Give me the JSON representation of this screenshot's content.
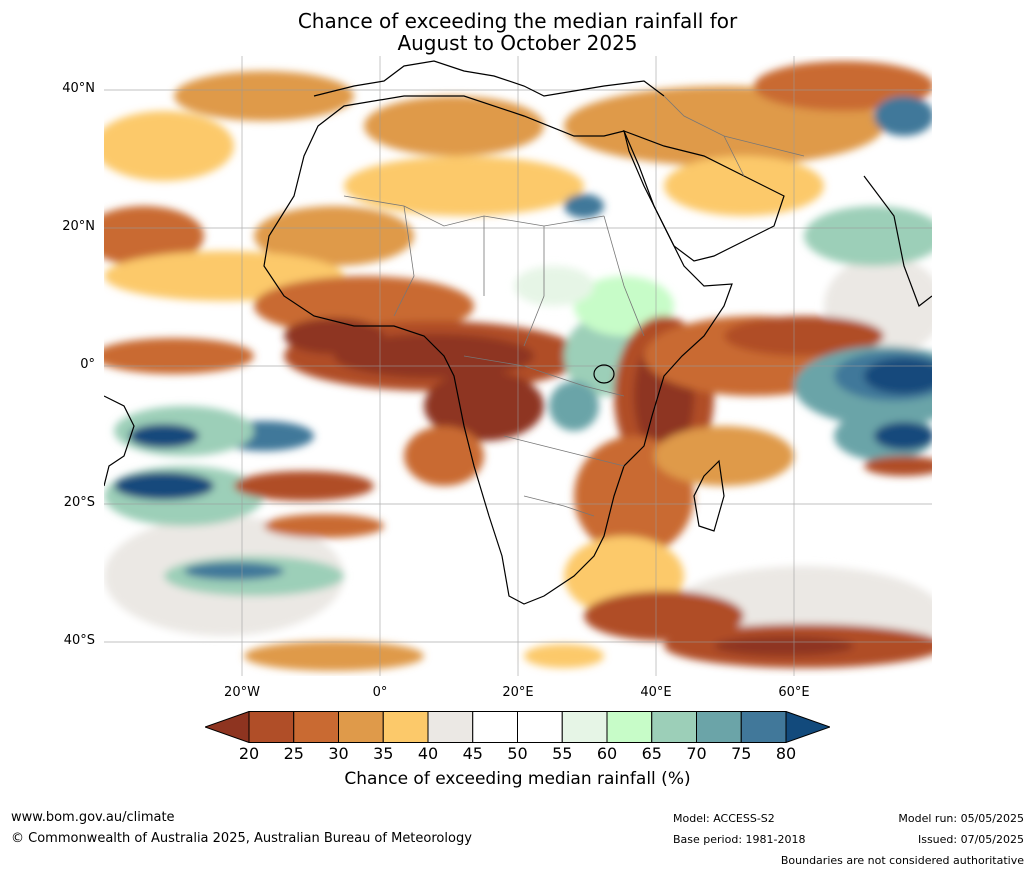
{
  "title_line1": "Chance of exceeding the median rainfall for",
  "title_line2": "August to October 2025",
  "lat_labels": [
    "40°N",
    "20°N",
    "0°",
    "20°S",
    "40°S"
  ],
  "lon_labels": [
    "20°W",
    "0°",
    "20°E",
    "40°E",
    "60°E"
  ],
  "colorbar": {
    "ticks": [
      "20",
      "25",
      "30",
      "35",
      "40",
      "45",
      "50",
      "55",
      "60",
      "65",
      "70",
      "75",
      "80"
    ],
    "colors": [
      "#8e3420",
      "#b04e28",
      "#c96a32",
      "#df9a4a",
      "#fcc96a",
      "#ebe8e4",
      "#ffffff",
      "#ffffff",
      "#e6f5e6",
      "#c7fcc8",
      "#9ccfb8",
      "#6ba4a8",
      "#41789a",
      "#124a7c"
    ],
    "label": "Chance of exceeding median rainfall (%)"
  },
  "footer": {
    "website": "www.bom.gov.au/climate",
    "copyright": "© Commonwealth of Australia 2025, Australian Bureau of Meteorology",
    "model": "Model: ACCESS-S2",
    "base_period": "Base period: 1981-2018",
    "model_run": "Model run: 05/05/2025",
    "issued": "Issued: 07/05/2025",
    "disclaimer": "Boundaries are not considered authoritative"
  }
}
